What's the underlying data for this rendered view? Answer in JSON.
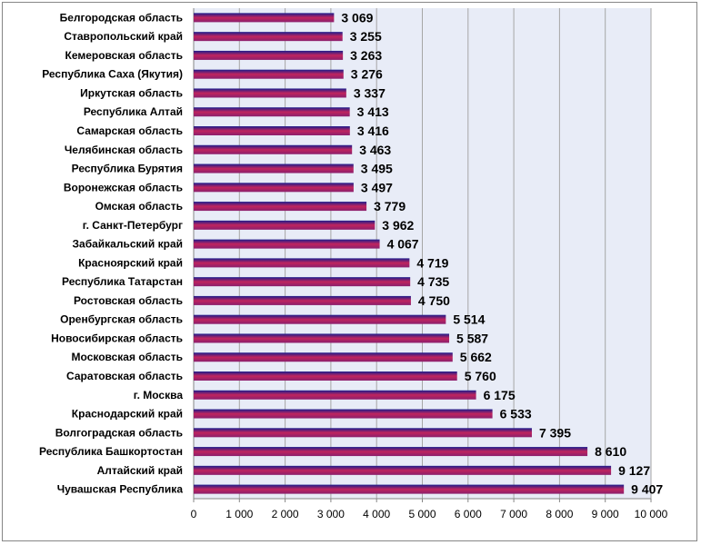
{
  "chart_data": {
    "type": "bar",
    "orientation": "horizontal",
    "categories": [
      "Белгородская область",
      "Ставропольский край",
      "Кемеровская область",
      "Республика Саха (Якутия)",
      "Иркутская область",
      "Республика Алтай",
      "Самарская область",
      "Челябинская область",
      "Республика Бурятия",
      "Воронежская область",
      "Омская область",
      "г. Санкт-Петербург",
      "Забайкальский край",
      "Красноярский край",
      "Республика Татарстан",
      "Ростовская область",
      "Оренбургская область",
      "Новосибирская область",
      "Московская область",
      "Саратовская область",
      "г. Москва",
      "Краснодарский край",
      "Волгоградская область",
      "Республика Башкортостан",
      "Алтайский край",
      "Чувашская Республика"
    ],
    "values": [
      3069,
      3255,
      3263,
      3276,
      3337,
      3413,
      3416,
      3463,
      3495,
      3497,
      3779,
      3962,
      4067,
      4719,
      4735,
      4750,
      5514,
      5587,
      5662,
      5760,
      6175,
      6533,
      7395,
      8610,
      9127,
      9407
    ],
    "value_labels": [
      "3 069",
      "3 255",
      "3 263",
      "3 276",
      "3 337",
      "3 413",
      "3 416",
      "3 463",
      "3 495",
      "3 497",
      "3 779",
      "3 962",
      "4 067",
      "4 719",
      "4 735",
      "4 750",
      "5 514",
      "5 587",
      "5 662",
      "5 760",
      "6 175",
      "6 533",
      "7 395",
      "8 610",
      "9 127",
      "9 407"
    ],
    "x_ticks": [
      0,
      1000,
      2000,
      3000,
      4000,
      5000,
      6000,
      7000,
      8000,
      9000,
      10000
    ],
    "x_tick_labels": [
      "0",
      "1 000",
      "2 000",
      "3 000",
      "4 000",
      "5 000",
      "6 000",
      "7 000",
      "8 000",
      "9 000",
      "10 000"
    ],
    "xlim": [
      0,
      10000
    ],
    "grid": "vertical",
    "legend": "none",
    "colors": {
      "bar_top": "#1c1c8c",
      "bar_mid": "#c0245e",
      "bar_bottom": "#8a1f6e",
      "plot_background": "#e8ecf7",
      "gridline": "#a6a6a6",
      "frame": "#868686"
    }
  }
}
